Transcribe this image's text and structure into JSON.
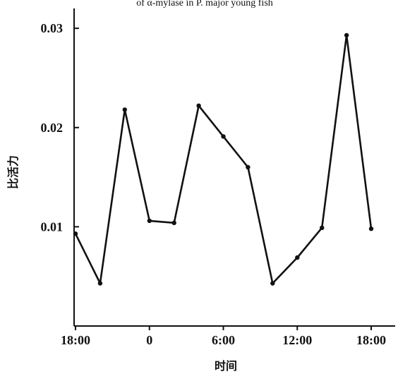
{
  "chart_data": {
    "type": "line",
    "caption_fragment": "of α-mylase in P. major young fish",
    "xlabel": "时间",
    "ylabel": "比活力",
    "x_ticks": [
      "18:00",
      "0",
      "6:00",
      "12:00",
      "18:00"
    ],
    "x_tick_positions": [
      0,
      6,
      12,
      18,
      24
    ],
    "y_ticks": [
      "0.01",
      "0.02",
      "0.03"
    ],
    "y_tick_values": [
      0.01,
      0.02,
      0.03
    ],
    "xlim": [
      0,
      24
    ],
    "ylim": [
      0,
      0.032
    ],
    "x": [
      0,
      2,
      4,
      6,
      8,
      10,
      12,
      14,
      16,
      18,
      20,
      22,
      24
    ],
    "series": [
      {
        "values": [
          0.0093,
          0.0043,
          0.0218,
          0.0106,
          0.0104,
          0.0222,
          0.0191,
          0.016,
          0.0043,
          0.0069,
          0.0099,
          0.0293,
          0.0098
        ]
      }
    ],
    "grid": false,
    "color": "#111111"
  }
}
